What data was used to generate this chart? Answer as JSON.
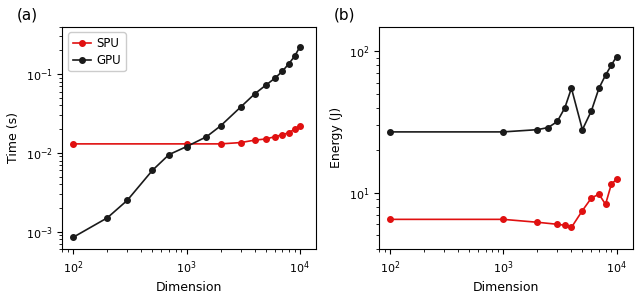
{
  "gpu_time_x": [
    100,
    200,
    300,
    500,
    700,
    1000,
    1500,
    2000,
    3000,
    4000,
    5000,
    6000,
    7000,
    8000,
    9000,
    10000
  ],
  "gpu_time_y": [
    0.00085,
    0.0015,
    0.0025,
    0.006,
    0.0095,
    0.012,
    0.016,
    0.022,
    0.038,
    0.056,
    0.072,
    0.088,
    0.108,
    0.135,
    0.168,
    0.22
  ],
  "spu_time_x": [
    100,
    1000,
    2000,
    3000,
    4000,
    5000,
    6000,
    7000,
    8000,
    9000,
    10000
  ],
  "spu_time_y": [
    0.013,
    0.013,
    0.013,
    0.0135,
    0.0145,
    0.015,
    0.016,
    0.017,
    0.018,
    0.02,
    0.022
  ],
  "gpu_energy_x": [
    100,
    1000,
    2000,
    2500,
    3000,
    3500,
    4000,
    5000,
    6000,
    7000,
    8000,
    9000,
    10000
  ],
  "gpu_energy_y": [
    27,
    27,
    28,
    29,
    32,
    40,
    55,
    28,
    38,
    55,
    68,
    80,
    92
  ],
  "spu_energy_x": [
    100,
    1000,
    2000,
    3000,
    3500,
    4000,
    5000,
    6000,
    7000,
    8000,
    9000,
    10000
  ],
  "spu_energy_y": [
    6.5,
    6.5,
    6.2,
    6.0,
    5.9,
    5.7,
    7.5,
    9.2,
    9.8,
    8.3,
    11.5,
    12.5
  ],
  "spu_color": "#e01010",
  "gpu_color": "#1a1a1a",
  "title_a": "(a)",
  "title_b": "(b)",
  "xlabel": "Dimension",
  "ylabel_a": "Time (s)",
  "ylabel_b": "Energy (J)",
  "label_spu": "SPU",
  "label_gpu": "GPU",
  "xlim": [
    80,
    14000
  ],
  "time_ylim": [
    0.0006,
    0.4
  ],
  "energy_ylim": [
    4,
    150
  ]
}
